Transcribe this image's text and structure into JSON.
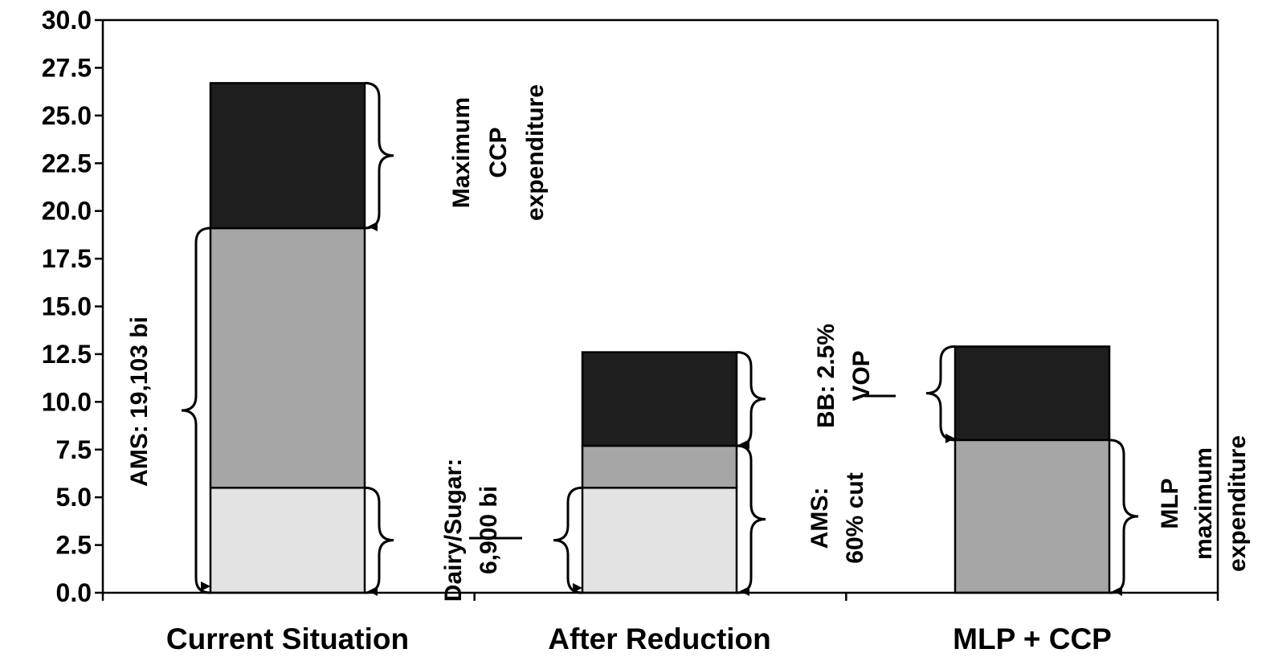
{
  "chart_data": {
    "type": "bar",
    "stacked": true,
    "categories": [
      "Current Situation",
      "After Reduction",
      "MLP + CCP"
    ],
    "series": [
      {
        "color": "#e3e3e3",
        "values": [
          5.5,
          5.5,
          0
        ]
      },
      {
        "color": "#a6a6a6",
        "values": [
          13.6,
          2.2,
          8.0
        ]
      },
      {
        "color": "#1e1e1e",
        "values": [
          7.6,
          4.9,
          4.9
        ]
      }
    ],
    "ylim": [
      0,
      30
    ],
    "yticks": [
      "0.0",
      "2.5",
      "5.0",
      "7.5",
      "10.0",
      "12.5",
      "15.0",
      "17.5",
      "20.0",
      "22.5",
      "25.0",
      "27.5",
      "30.0"
    ],
    "title": "",
    "xlabel": "",
    "ylabel": "",
    "annotations": [
      {
        "id": "max-ccp",
        "lines": [
          "Maximum",
          "CCP",
          "expenditure"
        ]
      },
      {
        "id": "ams-total",
        "lines": [
          "AMS: 19,103 bi"
        ]
      },
      {
        "id": "dairy-sugar",
        "lines": [
          "Dairy/Sugar:",
          "6,900 bi"
        ]
      },
      {
        "id": "bb",
        "lines": [
          "BB: 2.5%",
          "VOP"
        ]
      },
      {
        "id": "ams-cut",
        "lines": [
          "AMS:",
          "60% cut"
        ]
      },
      {
        "id": "mlp-max",
        "lines": [
          "MLP",
          "maximum",
          "expenditure"
        ]
      }
    ]
  }
}
